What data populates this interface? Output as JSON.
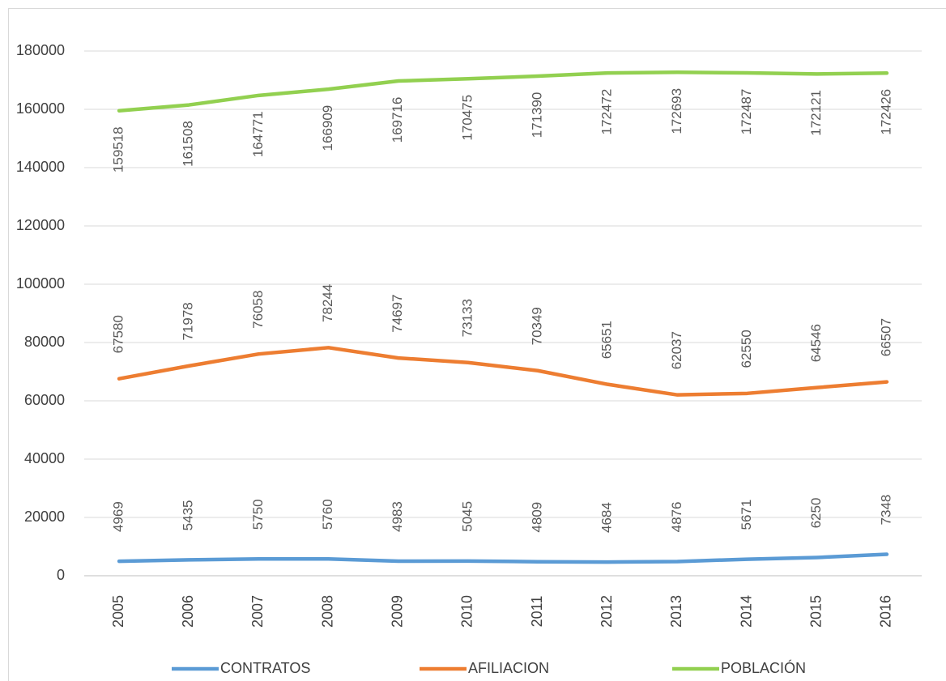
{
  "chart_data": {
    "type": "line",
    "categories": [
      "2005",
      "2006",
      "2007",
      "2008",
      "2009",
      "2010",
      "2011",
      "2012",
      "2013",
      "2014",
      "2015",
      "2016"
    ],
    "series": [
      {
        "name": "CONTRATOS",
        "color": "#5b9bd5",
        "label_position": "above",
        "values": [
          4969,
          5435,
          5750,
          5760,
          4983,
          5045,
          4809,
          4684,
          4876,
          5671,
          6250,
          7348
        ]
      },
      {
        "name": "AFILIACION",
        "color": "#ed7d31",
        "label_position": "above",
        "values": [
          67580,
          71978,
          76058,
          78244,
          74697,
          73133,
          70349,
          65651,
          62037,
          62550,
          64546,
          66507
        ]
      },
      {
        "name": "POBLACIÓN",
        "color": "#92d050",
        "label_position": "below",
        "values": [
          159518,
          161508,
          164771,
          166909,
          169716,
          170475,
          171390,
          172472,
          172693,
          172487,
          172121,
          172426
        ]
      }
    ],
    "ylim": [
      0,
      180000
    ],
    "yticks": [
      0,
      20000,
      40000,
      60000,
      80000,
      100000,
      120000,
      140000,
      160000,
      180000
    ],
    "grid": true,
    "legend": "bottom"
  }
}
